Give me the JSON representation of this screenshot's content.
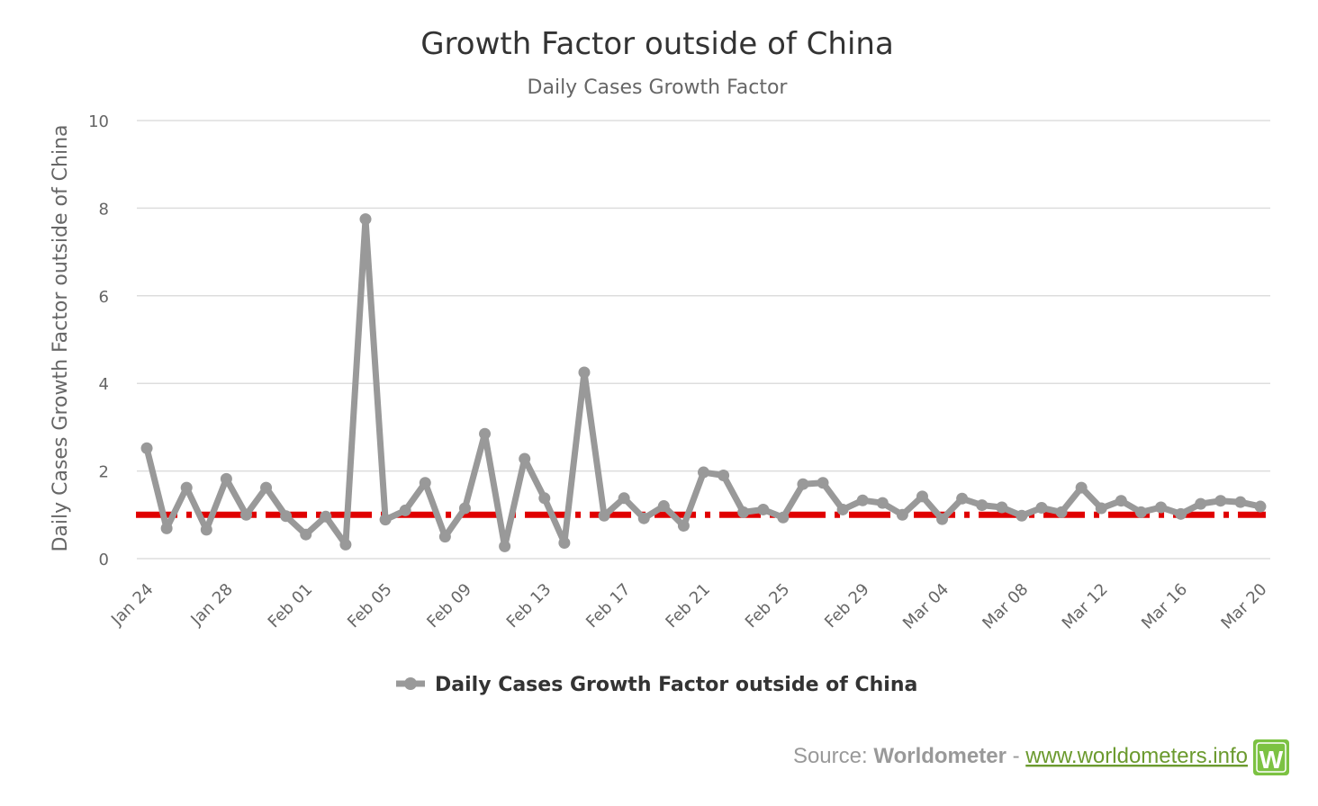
{
  "chart_data": {
    "type": "line",
    "title": "Growth Factor outside of China",
    "subtitle": "Daily Cases Growth Factor",
    "ylabel": "Daily Cases Growth Factor outside of China",
    "xlabel": "",
    "ylim": [
      0,
      10
    ],
    "yticks": [
      0,
      2,
      4,
      6,
      8,
      10
    ],
    "grid": true,
    "legend_position": "bottom",
    "reference_line": {
      "value": 1,
      "style": "dash-dot",
      "color": "#e00000"
    },
    "categories": [
      "Jan 24",
      "Jan 25",
      "Jan 26",
      "Jan 27",
      "Jan 28",
      "Jan 29",
      "Jan 30",
      "Jan 31",
      "Feb 01",
      "Feb 02",
      "Feb 03",
      "Feb 04",
      "Feb 05",
      "Feb 06",
      "Feb 07",
      "Feb 08",
      "Feb 09",
      "Feb 10",
      "Feb 11",
      "Feb 12",
      "Feb 13",
      "Feb 14",
      "Feb 15",
      "Feb 16",
      "Feb 17",
      "Feb 18",
      "Feb 19",
      "Feb 20",
      "Feb 21",
      "Feb 22",
      "Feb 23",
      "Feb 24",
      "Feb 25",
      "Feb 26",
      "Feb 27",
      "Feb 28",
      "Feb 29",
      "Mar 01",
      "Mar 02",
      "Mar 03",
      "Mar 04",
      "Mar 05",
      "Mar 06",
      "Mar 07",
      "Mar 08",
      "Mar 09",
      "Mar 10",
      "Mar 11",
      "Mar 12",
      "Mar 13",
      "Mar 14",
      "Mar 15",
      "Mar 16",
      "Mar 17",
      "Mar 18",
      "Mar 19",
      "Mar 20"
    ],
    "tick_labels": [
      "Jan 24",
      "Jan 28",
      "Feb 01",
      "Feb 05",
      "Feb 09",
      "Feb 13",
      "Feb 17",
      "Feb 21",
      "Feb 25",
      "Feb 29",
      "Mar 04",
      "Mar 08",
      "Mar 12",
      "Mar 16",
      "Mar 20"
    ],
    "series": [
      {
        "name": "Daily Cases Growth Factor outside of China",
        "color": "#999999",
        "values": [
          2.52,
          0.69,
          1.62,
          0.66,
          1.82,
          1.0,
          1.62,
          0.97,
          0.55,
          0.96,
          0.32,
          7.75,
          0.89,
          1.1,
          1.73,
          0.5,
          1.15,
          2.85,
          0.28,
          2.28,
          1.38,
          0.36,
          4.25,
          0.98,
          1.38,
          0.92,
          1.2,
          0.75,
          1.97,
          1.9,
          1.06,
          1.12,
          0.94,
          1.7,
          1.73,
          1.12,
          1.33,
          1.27,
          1.0,
          1.42,
          0.9,
          1.37,
          1.22,
          1.17,
          0.98,
          1.16,
          1.06,
          1.62,
          1.15,
          1.32,
          1.06,
          1.17,
          1.02,
          1.25,
          1.32,
          1.29,
          1.19
        ]
      }
    ]
  },
  "source": {
    "prefix": "Source: ",
    "name": "Worldometer",
    "separator": " - ",
    "link": "www.worldometers.info",
    "logo_letter": "W",
    "logo_color": "#7cc242"
  }
}
